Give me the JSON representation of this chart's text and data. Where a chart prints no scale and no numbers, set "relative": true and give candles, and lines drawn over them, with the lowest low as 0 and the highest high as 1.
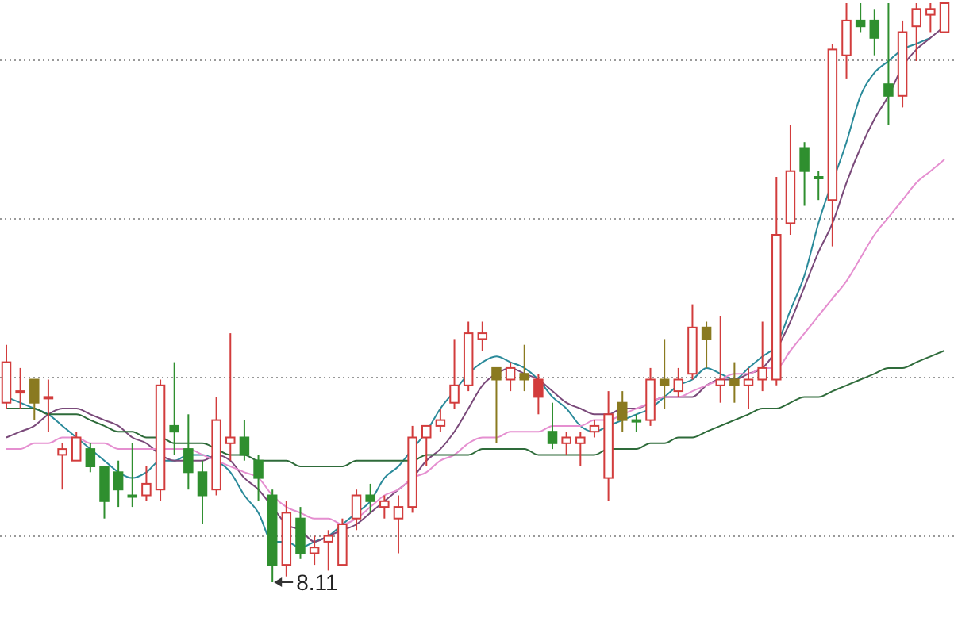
{
  "chart_data": {
    "type": "candlestick",
    "relative": true,
    "grid": true,
    "categories": [
      null,
      null,
      null,
      null,
      null,
      null,
      null,
      null,
      null,
      null,
      null,
      null,
      null,
      null,
      null,
      null,
      null,
      null,
      null,
      null,
      null,
      null,
      null,
      null,
      null,
      null,
      null,
      null,
      null,
      null,
      null,
      null,
      null,
      null,
      null,
      null,
      null,
      null,
      null,
      null,
      null,
      null,
      null,
      null,
      null,
      null,
      null,
      null,
      null,
      null,
      null,
      null,
      null,
      null,
      null,
      null,
      null,
      null,
      null,
      null,
      null,
      null,
      null,
      null,
      null,
      null,
      null,
      null
    ],
    "ohlc": [
      [
        0.31,
        0.41,
        0.3,
        0.38
      ],
      [
        0.33,
        0.37,
        0.3,
        0.33
      ],
      [
        0.35,
        0.35,
        0.28,
        0.31
      ],
      [
        0.32,
        0.35,
        0.26,
        0.32
      ],
      [
        0.22,
        0.24,
        0.16,
        0.23
      ],
      [
        0.21,
        0.26,
        0.21,
        0.25
      ],
      [
        0.23,
        0.24,
        0.19,
        0.2
      ],
      [
        0.2,
        0.2,
        0.11,
        0.14
      ],
      [
        0.19,
        0.21,
        0.13,
        0.16
      ],
      [
        0.15,
        0.24,
        0.13,
        0.15
      ],
      [
        0.15,
        0.2,
        0.14,
        0.17
      ],
      [
        0.16,
        0.35,
        0.14,
        0.34
      ],
      [
        0.27,
        0.38,
        0.22,
        0.26
      ],
      [
        0.23,
        0.29,
        0.16,
        0.19
      ],
      [
        0.19,
        0.21,
        0.1,
        0.15
      ],
      [
        0.16,
        0.32,
        0.15,
        0.28
      ],
      [
        0.24,
        0.43,
        0.21,
        0.25
      ],
      [
        0.25,
        0.28,
        0.21,
        0.22
      ],
      [
        0.21,
        0.22,
        0.14,
        0.18
      ],
      [
        0.15,
        0.16,
        0,
        0.03
      ],
      [
        0.03,
        0.14,
        0.01,
        0.12
      ],
      [
        0.11,
        0.13,
        0.04,
        0.05
      ],
      [
        0.05,
        0.08,
        0.03,
        0.06
      ],
      [
        0.07,
        0.09,
        0.02,
        0.08
      ],
      [
        0.03,
        0.11,
        0.03,
        0.1
      ],
      [
        0.11,
        0.16,
        0.09,
        0.15
      ],
      [
        0.15,
        0.17,
        0.12,
        0.14
      ],
      [
        0.13,
        0.15,
        0.11,
        0.14
      ],
      [
        0.11,
        0.15,
        0.05,
        0.13
      ],
      [
        0.13,
        0.27,
        0.12,
        0.25
      ],
      [
        0.25,
        0.27,
        0.2,
        0.27
      ],
      [
        0.27,
        0.3,
        0.26,
        0.28
      ],
      [
        0.31,
        0.42,
        0.3,
        0.34
      ],
      [
        0.34,
        0.45,
        0.33,
        0.43
      ],
      [
        0.42,
        0.45,
        0.4,
        0.43
      ],
      [
        0.37,
        0.37,
        0.24,
        0.35
      ],
      [
        0.35,
        0.38,
        0.33,
        0.37
      ],
      [
        0.36,
        0.41,
        0.33,
        0.35
      ],
      [
        0.35,
        0.36,
        0.29,
        0.32
      ],
      [
        0.26,
        0.31,
        0.23,
        0.24
      ],
      [
        0.24,
        0.26,
        0.22,
        0.25
      ],
      [
        0.24,
        0.26,
        0.2,
        0.25
      ],
      [
        0.26,
        0.28,
        0.25,
        0.27
      ],
      [
        0.18,
        0.33,
        0.14,
        0.29
      ],
      [
        0.31,
        0.33,
        0.26,
        0.28
      ],
      [
        0.28,
        0.29,
        0.26,
        0.28
      ],
      [
        0.28,
        0.37,
        0.27,
        0.35
      ],
      [
        0.35,
        0.42,
        0.3,
        0.34
      ],
      [
        0.33,
        0.37,
        0.32,
        0.35
      ],
      [
        0.36,
        0.48,
        0.35,
        0.44
      ],
      [
        0.44,
        0.45,
        0.37,
        0.42
      ],
      [
        0.34,
        0.46,
        0.31,
        0.35
      ],
      [
        0.35,
        0.38,
        0.31,
        0.34
      ],
      [
        0.34,
        0.37,
        0.3,
        0.35
      ],
      [
        0.35,
        0.45,
        0.33,
        0.37
      ],
      [
        0.35,
        0.7,
        0.34,
        0.6
      ],
      [
        0.62,
        0.79,
        0.6,
        0.71
      ],
      [
        0.75,
        0.76,
        0.65,
        0.71
      ],
      [
        0.7,
        0.71,
        0.66,
        0.7
      ],
      [
        0.66,
        0.93,
        0.58,
        0.92
      ],
      [
        0.91,
        1,
        0.87,
        0.97
      ],
      [
        0.97,
        1,
        0.95,
        0.96
      ],
      [
        0.97,
        0.99,
        0.91,
        0.94
      ],
      [
        0.86,
        1,
        0.79,
        0.84
      ],
      [
        0.84,
        0.97,
        0.82,
        0.95
      ],
      [
        0.96,
        1,
        0.9,
        0.99
      ],
      [
        0.98,
        1,
        0.95,
        0.99
      ],
      [
        0.95,
        1,
        0.95,
        1
      ]
    ],
    "colors": [
      "#d23c3c",
      "#d23c3c",
      "#8a7a20",
      "#d23c3c",
      "#d23c3c",
      "#d23c3c",
      "#2f8f2f",
      "#2f8f2f",
      "#2f8f2f",
      "#2f8f2f",
      "#d23c3c",
      "#d23c3c",
      "#2f8f2f",
      "#2f8f2f",
      "#2f8f2f",
      "#d23c3c",
      "#d23c3c",
      "#2f8f2f",
      "#2f8f2f",
      "#2f8f2f",
      "#d23c3c",
      "#2f8f2f",
      "#d23c3c",
      "#d23c3c",
      "#d23c3c",
      "#d23c3c",
      "#2f8f2f",
      "#d23c3c",
      "#d23c3c",
      "#d23c3c",
      "#d23c3c",
      "#d23c3c",
      "#d23c3c",
      "#d23c3c",
      "#d23c3c",
      "#8a7a20",
      "#d23c3c",
      "#8a7a20",
      "#d23c3c",
      "#2f8f2f",
      "#d23c3c",
      "#d23c3c",
      "#d23c3c",
      "#d23c3c",
      "#8a7a20",
      "#2f8f2f",
      "#d23c3c",
      "#8a7a20",
      "#d23c3c",
      "#d23c3c",
      "#8a7a20",
      "#d23c3c",
      "#8a7a20",
      "#d23c3c",
      "#d23c3c",
      "#d23c3c",
      "#d23c3c",
      "#2f8f2f",
      "#2f8f2f",
      "#d23c3c",
      "#d23c3c",
      "#2f8f2f",
      "#2f8f2f",
      "#2f8f2f",
      "#d23c3c",
      "#d23c3c",
      "#d23c3c",
      "#d23c3c"
    ],
    "series": [
      {
        "type": "line",
        "color": "#2a8a9a",
        "values": [
          0.32,
          0.31,
          0.3,
          0.29,
          0.27,
          0.25,
          0.23,
          0.21,
          0.19,
          0.18,
          0.19,
          0.21,
          0.21,
          0.22,
          0.22,
          0.21,
          0.19,
          0.15,
          0.12,
          0.07,
          0.07,
          0.06,
          0.07,
          0.08,
          0.1,
          0.12,
          0.14,
          0.18,
          0.2,
          0.23,
          0.26,
          0.3,
          0.33,
          0.36,
          0.38,
          0.39,
          0.38,
          0.37,
          0.35,
          0.32,
          0.3,
          0.27,
          0.26,
          0.27,
          0.28,
          0.29,
          0.3,
          0.32,
          0.34,
          0.35,
          0.37,
          0.36,
          0.35,
          0.37,
          0.39,
          0.41,
          0.47,
          0.53,
          0.62,
          null,
          0.76,
          0.84,
          0.88,
          0.9,
          0.92,
          0.93,
          0.94,
          null
        ]
      },
      {
        "type": "line",
        "color": "#7a4a7a",
        "values": [
          0.25,
          0.26,
          0.27,
          0.29,
          0.3,
          0.3,
          0.29,
          0.28,
          0.27,
          0.25,
          0.24,
          0.22,
          0.21,
          0.21,
          0.21,
          0.22,
          0.21,
          0.18,
          0.16,
          0.13,
          0.1,
          0.09,
          0.07,
          0.08,
          0.09,
          0.1,
          0.12,
          0.14,
          0.16,
          0.18,
          0.21,
          0.23,
          0.26,
          0.3,
          0.34,
          0.36,
          0.37,
          0.36,
          0.35,
          0.33,
          0.31,
          0.3,
          0.29,
          0.29,
          0.3,
          0.3,
          0.31,
          0.32,
          0.32,
          0.32,
          0.34,
          0.35,
          0.35,
          0.36,
          0.37,
          null,
          0.45,
          0.51,
          0.57,
          0.62,
          0.69,
          0.75,
          0.8,
          0.84,
          0.89,
          0.92,
          0.94,
          0.96
        ]
      },
      {
        "type": "line",
        "color": "#e58fd0",
        "values": [
          0.23,
          0.23,
          0.24,
          0.24,
          0.25,
          0.25,
          0.24,
          0.24,
          0.23,
          0.23,
          0.23,
          0.23,
          0.23,
          0.23,
          0.22,
          0.21,
          0.2,
          0.19,
          0.18,
          0.15,
          0.13,
          0.12,
          0.11,
          0.11,
          0.1,
          0.11,
          0.13,
          0.15,
          0.16,
          0.18,
          0.19,
          0.21,
          0.22,
          0.24,
          0.25,
          0.25,
          0.26,
          0.26,
          0.26,
          0.27,
          0.27,
          0.27,
          0.28,
          0.28,
          0.29,
          0.3,
          0.31,
          0.32,
          0.32,
          0.33,
          0.34,
          0.35,
          0.36,
          0.36,
          0.37,
          0.37,
          0.4,
          0.43,
          0.46,
          0.49,
          0.52,
          0.56,
          0.6,
          0.63,
          0.66,
          0.69,
          0.71,
          0.73
        ]
      },
      {
        "type": "line",
        "color": "#2e6b3a",
        "values": [
          0.3,
          0.3,
          0.3,
          0.29,
          0.29,
          0.29,
          0.28,
          0.27,
          0.26,
          0.26,
          0.25,
          0.25,
          0.24,
          0.24,
          0.24,
          0.23,
          0.22,
          0.22,
          0.21,
          0.21,
          0.21,
          0.2,
          0.2,
          0.2,
          0.2,
          0.21,
          0.21,
          0.21,
          0.21,
          0.21,
          0.22,
          0.22,
          0.22,
          0.22,
          0.23,
          0.23,
          0.23,
          0.23,
          0.22,
          0.22,
          0.22,
          0.22,
          0.22,
          0.23,
          0.23,
          0.23,
          0.24,
          0.24,
          0.25,
          0.25,
          0.26,
          0.27,
          0.28,
          0.29,
          0.3,
          0.3,
          0.31,
          0.32,
          0.32,
          0.33,
          0.34,
          0.35,
          0.36,
          0.37,
          0.37,
          0.38,
          0.39,
          0.4
        ]
      }
    ],
    "annotations": [
      "8.11"
    ]
  }
}
